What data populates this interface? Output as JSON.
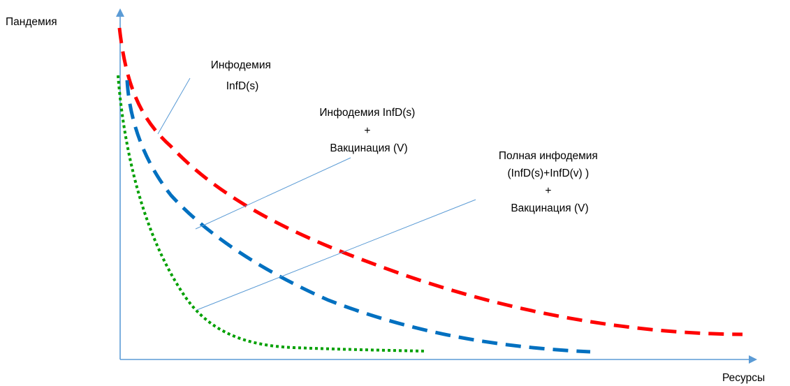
{
  "axes": {
    "y_label": "Пандемия",
    "x_label": "Ресурсы",
    "color": "#5b9bd5"
  },
  "curves": {
    "infodemic": {
      "color": "#ff0000",
      "style": "dashed"
    },
    "infodemic_vaccination": {
      "color": "#0070c0",
      "style": "dashed"
    },
    "full_infodemic_vaccination": {
      "color": "#00a000",
      "style": "dotted"
    }
  },
  "callouts": {
    "infodemic": {
      "lines": [
        "Инфодемия",
        "InfD(s)"
      ]
    },
    "infodemic_vaccination": {
      "lines": [
        "Инфодемия InfD(s)",
        "+",
        "Вакцинация (V)"
      ]
    },
    "full_infodemic_vaccination": {
      "lines": [
        "Полная инфодемия",
        "(InfD(s)+InfD(v) )",
        "+",
        "Вакцинация (V)"
      ]
    },
    "leader_color": "#5b9bd5"
  }
}
